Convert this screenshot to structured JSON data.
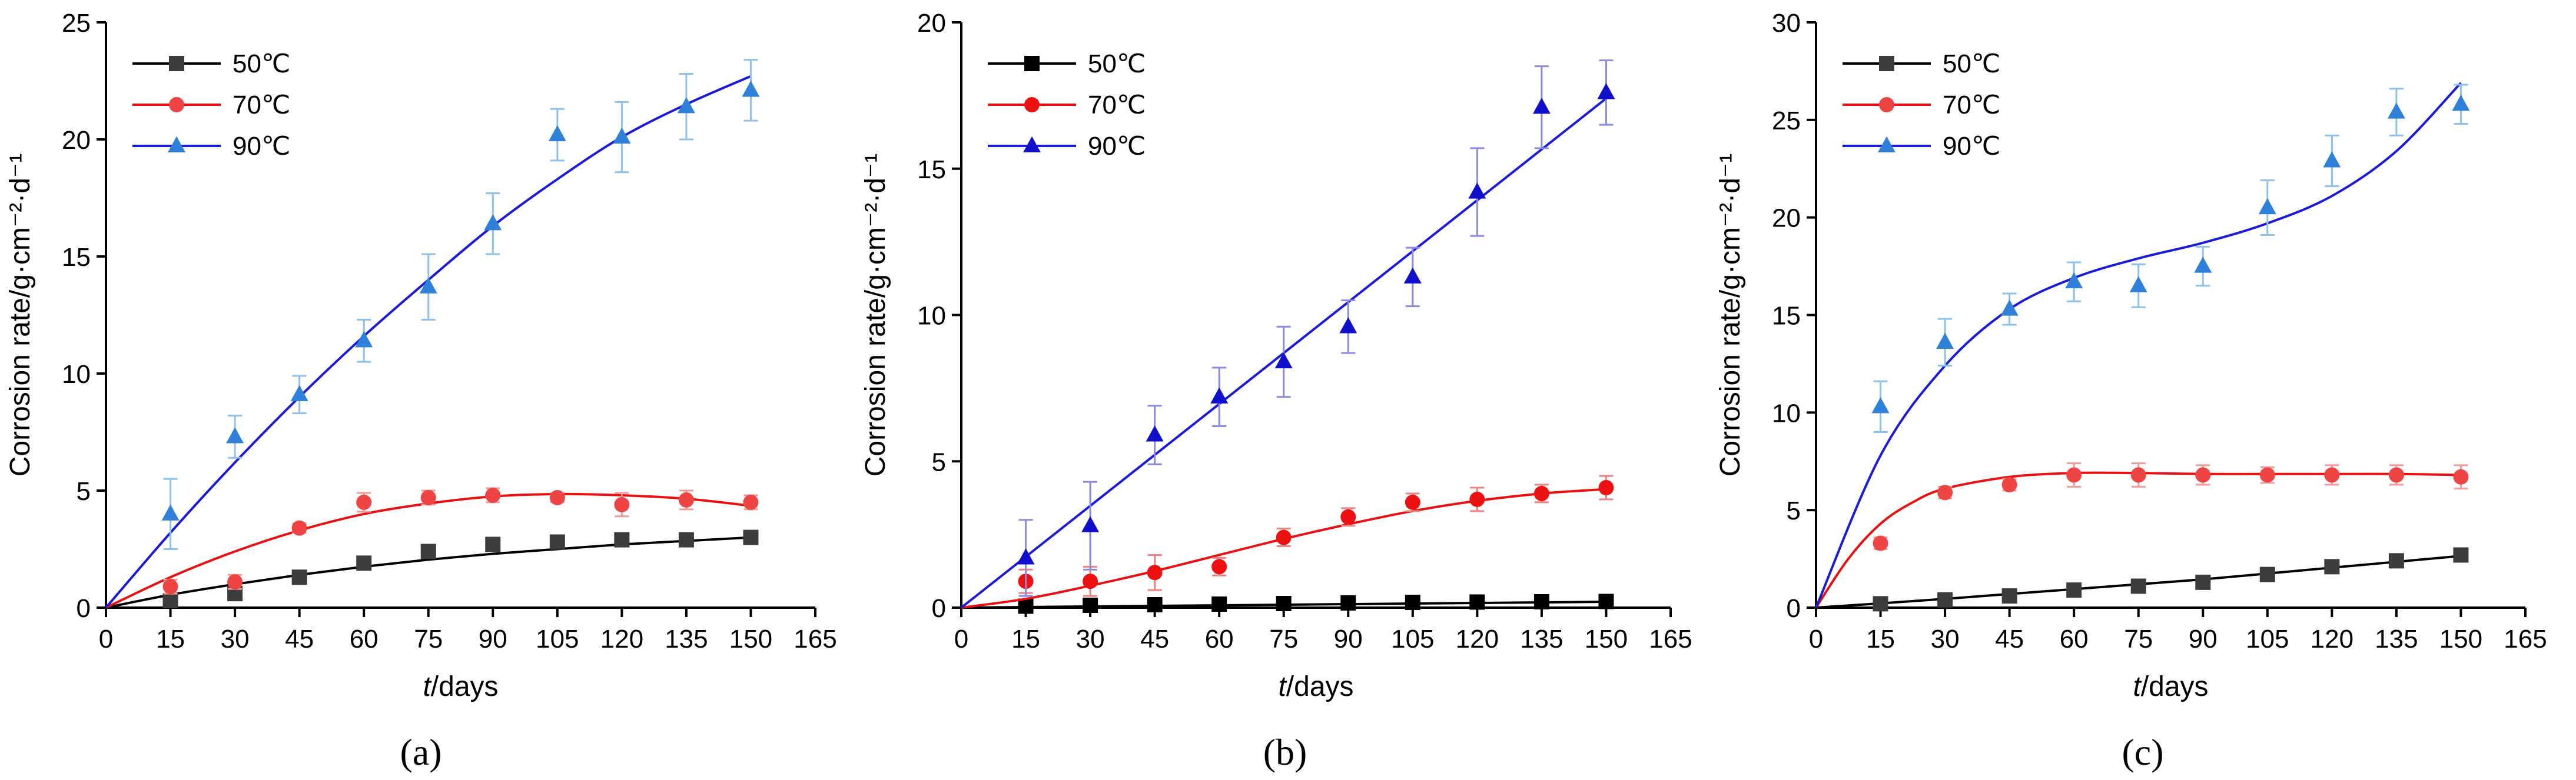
{
  "chart_data": [
    {
      "type": "scatter",
      "panel_label": "(a)",
      "xlabel_var": "t",
      "xlabel_unit": "/days",
      "ylabel": "Corrosion rate/g·cm⁻²·d⁻¹",
      "xlim": [
        0,
        165
      ],
      "ylim": [
        0,
        25
      ],
      "xticks": [
        0,
        15,
        30,
        45,
        60,
        75,
        90,
        105,
        120,
        135,
        150,
        165
      ],
      "yticks": [
        0,
        5,
        10,
        15,
        20,
        25
      ],
      "legend_position": "top-left",
      "series": [
        {
          "name": "50℃",
          "marker": "square",
          "color": "#3c3c3c",
          "errcolor": "#8c8c8c",
          "line_color": "#000000",
          "x": [
            15,
            30,
            45,
            60,
            75,
            90,
            105,
            120,
            135,
            150
          ],
          "y": [
            0.3,
            0.6,
            1.3,
            1.9,
            2.4,
            2.7,
            2.8,
            2.9,
            2.9,
            3.0
          ],
          "err": [
            0.1,
            0.2,
            0.2,
            0.2,
            0.2,
            0.2,
            0.2,
            0.2,
            0.2,
            0.2
          ],
          "fit_x": [
            0,
            15,
            30,
            45,
            60,
            75,
            90,
            105,
            120,
            135,
            150
          ],
          "fit_y": [
            0,
            0.55,
            1.0,
            1.4,
            1.75,
            2.05,
            2.3,
            2.5,
            2.7,
            2.85,
            3.0
          ]
        },
        {
          "name": "70℃",
          "marker": "circle",
          "color": "#ee4444",
          "errcolor": "#f39a9a",
          "line_color": "#e81010",
          "x": [
            15,
            30,
            45,
            60,
            75,
            90,
            105,
            120,
            135,
            150
          ],
          "y": [
            0.9,
            1.1,
            3.4,
            4.5,
            4.7,
            4.8,
            4.7,
            4.4,
            4.6,
            4.5
          ],
          "err": [
            0.3,
            0.3,
            0.2,
            0.4,
            0.3,
            0.3,
            0.2,
            0.5,
            0.4,
            0.3
          ],
          "fit_x": [
            0,
            15,
            30,
            45,
            60,
            75,
            90,
            105,
            120,
            135,
            150
          ],
          "fit_y": [
            0,
            1.3,
            2.4,
            3.3,
            4.0,
            4.45,
            4.75,
            4.85,
            4.8,
            4.65,
            4.35
          ]
        },
        {
          "name": "90℃",
          "marker": "triangle",
          "color": "#2f80d8",
          "errcolor": "#8ec0ee",
          "line_color": "#1a1ad8",
          "x": [
            15,
            30,
            45,
            60,
            75,
            90,
            105,
            120,
            135,
            150
          ],
          "y": [
            4.0,
            7.3,
            9.1,
            11.4,
            13.7,
            16.4,
            20.2,
            20.1,
            21.4,
            22.1
          ],
          "err": [
            1.5,
            0.9,
            0.8,
            0.9,
            1.4,
            1.3,
            1.1,
            1.5,
            1.4,
            1.3
          ],
          "fit_x": [
            0,
            15,
            30,
            45,
            60,
            75,
            90,
            105,
            120,
            135,
            150
          ],
          "fit_y": [
            0,
            3.2,
            6.2,
            9.0,
            11.6,
            14.0,
            16.3,
            18.3,
            20.1,
            21.5,
            22.7
          ]
        }
      ]
    },
    {
      "type": "scatter",
      "panel_label": "(b)",
      "xlabel_var": "t",
      "xlabel_unit": "/days",
      "ylabel": "Corrosion rate/g·cm⁻²·d⁻¹",
      "xlim": [
        0,
        165
      ],
      "ylim": [
        0,
        20
      ],
      "xticks": [
        0,
        15,
        30,
        45,
        60,
        75,
        90,
        105,
        120,
        135,
        150,
        165
      ],
      "yticks": [
        0,
        5,
        10,
        15,
        20
      ],
      "legend_position": "top-left",
      "series": [
        {
          "name": "50℃",
          "marker": "square",
          "color": "#000000",
          "errcolor": "#555555",
          "line_color": "#000000",
          "x": [
            15,
            30,
            45,
            60,
            75,
            90,
            105,
            120,
            135,
            150
          ],
          "y": [
            0.05,
            0.08,
            0.1,
            0.12,
            0.14,
            0.16,
            0.18,
            0.19,
            0.2,
            0.21
          ],
          "err": [
            0.03,
            0.03,
            0.03,
            0.03,
            0.03,
            0.03,
            0.03,
            0.03,
            0.03,
            0.03
          ],
          "fit_x": [
            0,
            150
          ],
          "fit_y": [
            0,
            0.2
          ]
        },
        {
          "name": "70℃",
          "marker": "circle",
          "color": "#ee1111",
          "errcolor": "#f38080",
          "line_color": "#e81010",
          "x": [
            15,
            30,
            45,
            60,
            75,
            90,
            105,
            120,
            135,
            150
          ],
          "y": [
            0.9,
            0.9,
            1.2,
            1.4,
            2.4,
            3.1,
            3.6,
            3.7,
            3.9,
            4.1
          ],
          "err": [
            0.4,
            0.5,
            0.6,
            0.3,
            0.3,
            0.3,
            0.3,
            0.4,
            0.3,
            0.4
          ],
          "fit_x": [
            0,
            15,
            30,
            45,
            60,
            75,
            90,
            105,
            120,
            135,
            150
          ],
          "fit_y": [
            0,
            0.3,
            0.75,
            1.25,
            1.8,
            2.35,
            2.85,
            3.3,
            3.65,
            3.9,
            4.05
          ]
        },
        {
          "name": "90℃",
          "marker": "triangle",
          "color": "#1010cc",
          "errcolor": "#8a8ae0",
          "line_color": "#1a1ad8",
          "x": [
            15,
            30,
            45,
            60,
            75,
            90,
            105,
            120,
            135,
            150
          ],
          "y": [
            1.7,
            2.8,
            5.9,
            7.2,
            8.4,
            9.6,
            11.3,
            14.2,
            17.1,
            17.6
          ],
          "err": [
            1.3,
            1.5,
            1.0,
            1.0,
            1.2,
            0.9,
            1.0,
            1.5,
            1.4,
            1.1
          ],
          "fit_x": [
            0,
            150
          ],
          "fit_y": [
            0,
            17.4
          ]
        }
      ]
    },
    {
      "type": "scatter",
      "panel_label": "(c)",
      "xlabel_var": "t",
      "xlabel_unit": "/days",
      "ylabel": "Corrosion rate/g·cm⁻²·d⁻¹",
      "xlim": [
        0,
        165
      ],
      "ylim": [
        0,
        30
      ],
      "xticks": [
        0,
        15,
        30,
        45,
        60,
        75,
        90,
        105,
        120,
        135,
        150,
        165
      ],
      "yticks": [
        0,
        5,
        10,
        15,
        20,
        25,
        30
      ],
      "legend_position": "top-left",
      "series": [
        {
          "name": "50℃",
          "marker": "square",
          "color": "#3c3c3c",
          "errcolor": "#8c8c8c",
          "line_color": "#000000",
          "x": [
            15,
            30,
            45,
            60,
            75,
            90,
            105,
            120,
            135,
            150
          ],
          "y": [
            0.2,
            0.4,
            0.6,
            0.9,
            1.1,
            1.3,
            1.7,
            2.1,
            2.4,
            2.7
          ],
          "err": [
            0.1,
            0.1,
            0.1,
            0.1,
            0.1,
            0.1,
            0.15,
            0.15,
            0.15,
            0.2
          ],
          "fit_x": [
            0,
            15,
            30,
            45,
            60,
            75,
            90,
            105,
            120,
            135,
            150
          ],
          "fit_y": [
            0,
            0.22,
            0.45,
            0.7,
            0.95,
            1.2,
            1.45,
            1.75,
            2.05,
            2.35,
            2.65
          ]
        },
        {
          "name": "70℃",
          "marker": "circle",
          "color": "#ee4444",
          "errcolor": "#f39a9a",
          "line_color": "#e81010",
          "x": [
            15,
            30,
            45,
            60,
            75,
            90,
            105,
            120,
            135,
            150
          ],
          "y": [
            3.3,
            5.9,
            6.3,
            6.8,
            6.8,
            6.8,
            6.8,
            6.8,
            6.8,
            6.7
          ],
          "err": [
            0.3,
            0.3,
            0.3,
            0.6,
            0.6,
            0.5,
            0.4,
            0.5,
            0.5,
            0.6
          ],
          "fit_x": [
            0,
            7.5,
            15,
            22.5,
            30,
            45,
            60,
            75,
            90,
            105,
            120,
            135,
            150
          ],
          "fit_y": [
            0,
            2.5,
            4.3,
            5.4,
            6.1,
            6.7,
            6.9,
            6.9,
            6.85,
            6.85,
            6.85,
            6.85,
            6.8
          ]
        },
        {
          "name": "90℃",
          "marker": "triangle",
          "color": "#2f80d8",
          "errcolor": "#8ec0ee",
          "line_color": "#1a1ad8",
          "x": [
            15,
            30,
            45,
            60,
            75,
            90,
            105,
            120,
            135,
            150
          ],
          "y": [
            10.3,
            13.6,
            15.3,
            16.7,
            16.5,
            17.5,
            20.5,
            22.9,
            25.4,
            25.8
          ],
          "err": [
            1.3,
            1.2,
            0.8,
            1.0,
            1.1,
            1.0,
            1.4,
            1.3,
            1.2,
            1.0
          ],
          "fit_x": [
            0,
            15,
            30,
            45,
            60,
            75,
            90,
            105,
            120,
            135,
            150
          ],
          "fit_y": [
            0,
            7.8,
            12.4,
            15.3,
            16.9,
            17.9,
            18.7,
            19.7,
            21.1,
            23.4,
            26.9
          ]
        }
      ]
    }
  ]
}
